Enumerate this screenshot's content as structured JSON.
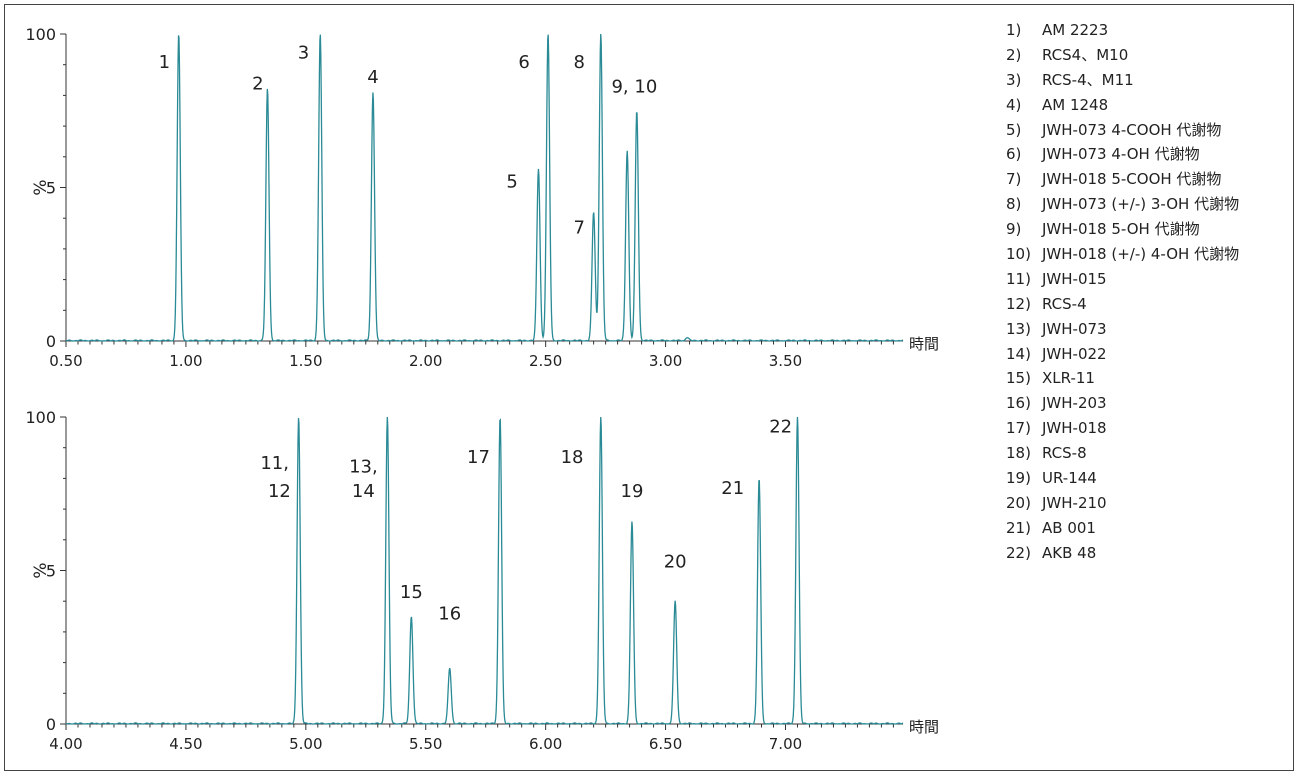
{
  "chart_data": [
    {
      "type": "line",
      "xlabel": "時間",
      "ylabel": "%",
      "xlim": [
        0.5,
        3.99
      ],
      "ylim": [
        0,
        100
      ],
      "x_ticks": [
        "0.50",
        "1.00",
        "1.50",
        "2.00",
        "2.50",
        "3.00",
        "3.50"
      ],
      "y_ticks": [
        "0",
        "5",
        "100"
      ],
      "color": "#2a8a96",
      "peaks": [
        {
          "rt": 0.97,
          "height": 100
        },
        {
          "rt": 1.34,
          "height": 82
        },
        {
          "rt": 1.56,
          "height": 100
        },
        {
          "rt": 1.78,
          "height": 81
        },
        {
          "rt": 2.47,
          "height": 56
        },
        {
          "rt": 2.51,
          "height": 100
        },
        {
          "rt": 2.7,
          "height": 42
        },
        {
          "rt": 2.73,
          "height": 100
        },
        {
          "rt": 2.84,
          "height": 62
        },
        {
          "rt": 2.88,
          "height": 75
        },
        {
          "rt": 3.09,
          "height": 1
        }
      ],
      "labels": [
        {
          "text": "1",
          "rt": 0.91,
          "level": 89
        },
        {
          "text": "2",
          "rt": 1.3,
          "level": 82
        },
        {
          "text": "3",
          "rt": 1.49,
          "level": 92
        },
        {
          "text": "4",
          "rt": 1.78,
          "level": 84
        },
        {
          "text": "5",
          "rt": 2.36,
          "level": 50
        },
        {
          "text": "6",
          "rt": 2.41,
          "level": 89
        },
        {
          "text": "7",
          "rt": 2.64,
          "level": 35
        },
        {
          "text": "8",
          "rt": 2.64,
          "level": 89
        },
        {
          "text": "9, 10",
          "rt": 2.87,
          "level": 81
        }
      ]
    },
    {
      "type": "line",
      "xlabel": "時間",
      "ylabel": "%",
      "xlim": [
        4.0,
        7.49
      ],
      "ylim": [
        0,
        100
      ],
      "x_ticks": [
        "4.00",
        "4.50",
        "5.00",
        "5.50",
        "6.00",
        "6.50",
        "7.00"
      ],
      "y_ticks": [
        "0",
        "5",
        "100"
      ],
      "color": "#2a8a96",
      "peaks": [
        {
          "rt": 4.97,
          "height": 100
        },
        {
          "rt": 5.34,
          "height": 100
        },
        {
          "rt": 5.44,
          "height": 35
        },
        {
          "rt": 5.6,
          "height": 18
        },
        {
          "rt": 5.81,
          "height": 100
        },
        {
          "rt": 6.23,
          "height": 100
        },
        {
          "rt": 6.36,
          "height": 66
        },
        {
          "rt": 6.54,
          "height": 40
        },
        {
          "rt": 6.89,
          "height": 80
        },
        {
          "rt": 7.05,
          "height": 100
        }
      ],
      "labels": [
        {
          "text": "11,",
          "rt": 4.87,
          "level": 83
        },
        {
          "text": "12",
          "rt": 4.89,
          "level": 74
        },
        {
          "text": "13,",
          "rt": 5.24,
          "level": 82
        },
        {
          "text": "14",
          "rt": 5.24,
          "level": 74
        },
        {
          "text": "15",
          "rt": 5.44,
          "level": 41
        },
        {
          "text": "16",
          "rt": 5.6,
          "level": 34
        },
        {
          "text": "17",
          "rt": 5.72,
          "level": 85
        },
        {
          "text": "18",
          "rt": 6.11,
          "level": 85
        },
        {
          "text": "19",
          "rt": 6.36,
          "level": 74
        },
        {
          "text": "20",
          "rt": 6.54,
          "level": 51
        },
        {
          "text": "21",
          "rt": 6.78,
          "level": 75
        },
        {
          "text": "22",
          "rt": 6.98,
          "level": 95
        }
      ]
    }
  ],
  "legend": [
    {
      "num": "1)",
      "name": "AM 2223"
    },
    {
      "num": "2)",
      "name": "RCS4、M10"
    },
    {
      "num": "3)",
      "name": "RCS-4、M11"
    },
    {
      "num": "4)",
      "name": "AM 1248"
    },
    {
      "num": "5)",
      "name": "JWH-073 4-COOH 代謝物"
    },
    {
      "num": "6)",
      "name": "JWH-073 4-OH 代謝物"
    },
    {
      "num": "7)",
      "name": "JWH-018 5-COOH 代謝物"
    },
    {
      "num": "8)",
      "name": "JWH-073 (+/-) 3-OH 代謝物"
    },
    {
      "num": "9)",
      "name": "JWH-018 5-OH 代謝物"
    },
    {
      "num": "10)",
      "name": "JWH-018 (+/-) 4-OH 代謝物"
    },
    {
      "num": "11)",
      "name": "JWH-015"
    },
    {
      "num": "12)",
      "name": "RCS-4"
    },
    {
      "num": "13)",
      "name": "JWH-073"
    },
    {
      "num": "14)",
      "name": "JWH-022"
    },
    {
      "num": "15)",
      "name": "XLR-11"
    },
    {
      "num": "16)",
      "name": "JWH-203"
    },
    {
      "num": "17)",
      "name": "JWH-018"
    },
    {
      "num": "18)",
      "name": "RCS-8"
    },
    {
      "num": "19)",
      "name": "UR-144"
    },
    {
      "num": "20)",
      "name": "JWH-210"
    },
    {
      "num": "21)",
      "name": "AB 001"
    },
    {
      "num": "22)",
      "name": "AKB 48"
    }
  ]
}
